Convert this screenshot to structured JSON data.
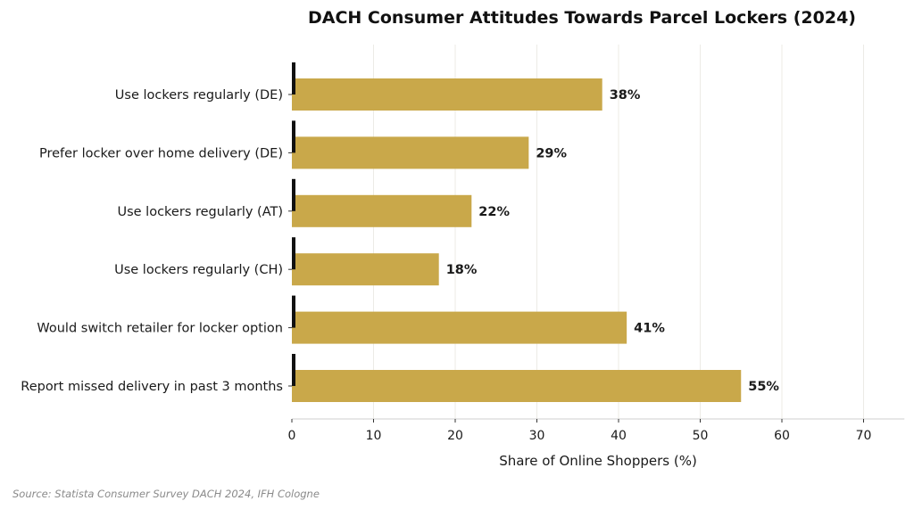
{
  "chart_data": {
    "type": "bar",
    "orientation": "horizontal",
    "title": "DACH Consumer Attitudes Towards Parcel Lockers (2024)",
    "xlabel": "Share of Online Shoppers (%)",
    "ylabel": "",
    "categories": [
      "Use lockers regularly (DE)",
      "Prefer locker over home delivery (DE)",
      "Use lockers regularly (AT)",
      "Use lockers regularly (CH)",
      "Would switch retailer for locker option",
      "Report missed delivery in past 3 months"
    ],
    "values": [
      38,
      29,
      22,
      18,
      41,
      55
    ],
    "value_labels": [
      "38%",
      "29%",
      "22%",
      "18%",
      "41%",
      "55%"
    ],
    "xlim": [
      0,
      75
    ],
    "xticks": [
      0,
      10,
      20,
      30,
      40,
      50,
      60,
      70
    ],
    "xtick_labels": [
      "0",
      "10",
      "20",
      "30",
      "40",
      "50",
      "60",
      "70"
    ],
    "grid": "vertical",
    "bar_color": "#C9A84A",
    "marker_color": "#111111",
    "source": "Source: Statista Consumer Survey DACH 2024, IFH Cologne"
  }
}
